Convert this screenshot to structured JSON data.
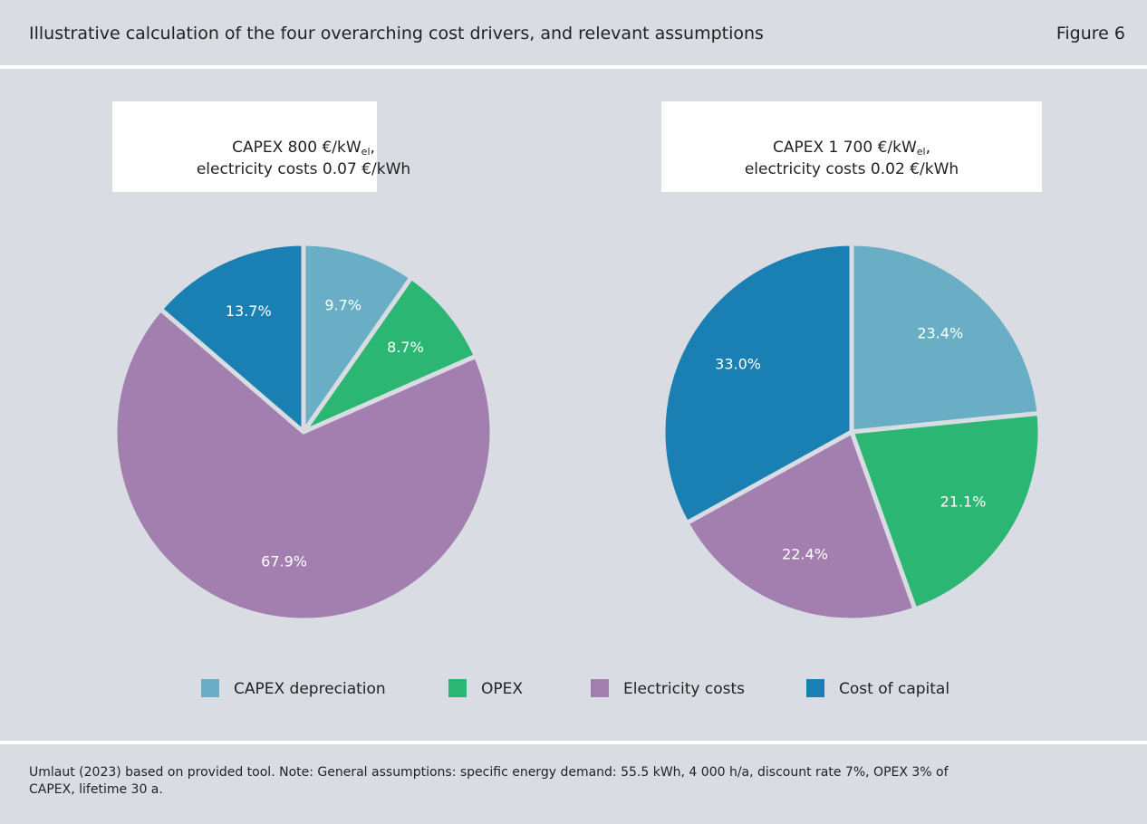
{
  "header": {
    "title": "Illustrative calculation of the four overarching cost drivers, and relevant assumptions",
    "figure": "Figure 6"
  },
  "chart_data": [
    {
      "type": "pie",
      "title": "CAPEX 800 €/kW",
      "title_subscript": "el",
      "title_suffix": ",",
      "subtitle": "electricity costs 0.07 €/kWh",
      "categories": [
        "CAPEX depreciation",
        "OPEX",
        "Electricity costs",
        "Cost of capital"
      ],
      "values": [
        9.7,
        8.7,
        67.9,
        13.7
      ],
      "value_labels": [
        "9.7%",
        "8.7%",
        "67.9%",
        "13.7%"
      ],
      "colors": [
        "#6aaec6",
        "#2bb673",
        "#a27faf",
        "#1a80b3"
      ]
    },
    {
      "type": "pie",
      "title": "CAPEX 1 700 €/kW",
      "title_subscript": "el",
      "title_suffix": ",",
      "subtitle": "electricity costs 0.02 €/kWh",
      "categories": [
        "CAPEX depreciation",
        "OPEX",
        "Electricity costs",
        "Cost of capital"
      ],
      "values": [
        23.4,
        21.1,
        22.4,
        33.0
      ],
      "value_labels": [
        "23.4%",
        "21.1%",
        "22.4%",
        "33.0%"
      ],
      "colors": [
        "#6aaec6",
        "#2bb673",
        "#a27faf",
        "#1a80b3"
      ]
    }
  ],
  "legend": {
    "position": "bottom"
  },
  "footer": {
    "source": "Umlaut (2023) based on provided tool. Note: General assumptions: specific energy demand: 55.5 kWh, 4 000 h/a, discount rate 7%, OPEX 3% of CAPEX, lifetime 30 a."
  }
}
